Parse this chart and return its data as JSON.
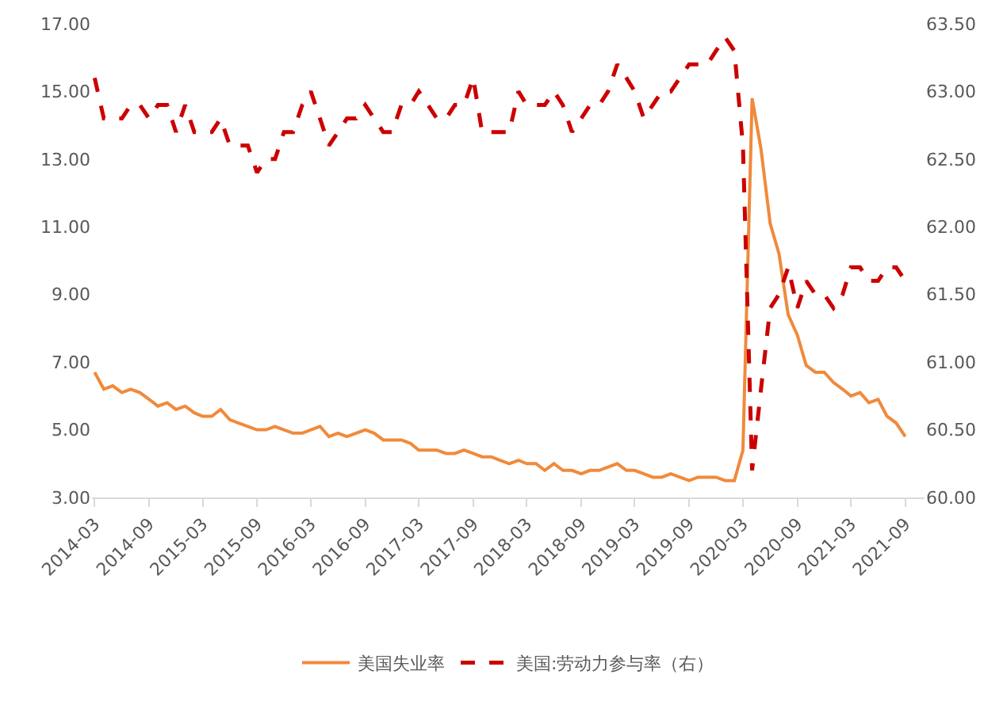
{
  "chart_data": {
    "type": "line",
    "legend": "bottom",
    "grid": false,
    "x": [
      "2014-03",
      "2014-04",
      "2014-05",
      "2014-06",
      "2014-07",
      "2014-08",
      "2014-09",
      "2014-10",
      "2014-11",
      "2014-12",
      "2015-01",
      "2015-02",
      "2015-03",
      "2015-04",
      "2015-05",
      "2015-06",
      "2015-07",
      "2015-08",
      "2015-09",
      "2015-10",
      "2015-11",
      "2015-12",
      "2016-01",
      "2016-02",
      "2016-03",
      "2016-04",
      "2016-05",
      "2016-06",
      "2016-07",
      "2016-08",
      "2016-09",
      "2016-10",
      "2016-11",
      "2016-12",
      "2017-01",
      "2017-02",
      "2017-03",
      "2017-04",
      "2017-05",
      "2017-06",
      "2017-07",
      "2017-08",
      "2017-09",
      "2017-10",
      "2017-11",
      "2017-12",
      "2018-01",
      "2018-02",
      "2018-03",
      "2018-04",
      "2018-05",
      "2018-06",
      "2018-07",
      "2018-08",
      "2018-09",
      "2018-10",
      "2018-11",
      "2018-12",
      "2019-01",
      "2019-02",
      "2019-03",
      "2019-04",
      "2019-05",
      "2019-06",
      "2019-07",
      "2019-08",
      "2019-09",
      "2019-10",
      "2019-11",
      "2019-12",
      "2020-01",
      "2020-02",
      "2020-03",
      "2020-04",
      "2020-05",
      "2020-06",
      "2020-07",
      "2020-08",
      "2020-09",
      "2020-10",
      "2020-11",
      "2020-12",
      "2021-01",
      "2021-02",
      "2021-03",
      "2021-04",
      "2021-05",
      "2021-06",
      "2021-07",
      "2021-08",
      "2021-09"
    ],
    "xlim": [
      "2014-02-20",
      "2021-11-05"
    ],
    "xticks": [
      "2014-03",
      "2014-09",
      "2015-03",
      "2015-09",
      "2016-03",
      "2016-09",
      "2017-03",
      "2017-09",
      "2018-03",
      "2018-09",
      "2019-03",
      "2019-09",
      "2020-03",
      "2020-09",
      "2021-03",
      "2021-09"
    ],
    "ylim": [
      3,
      17
    ],
    "yticks": [
      {
        "value": 3,
        "label": "3.00"
      },
      {
        "value": 5,
        "label": "5.00"
      },
      {
        "value": 7,
        "label": "7.00"
      },
      {
        "value": 9,
        "label": "9.00"
      },
      {
        "value": 11,
        "label": "11.00"
      },
      {
        "value": 13,
        "label": "13.00"
      },
      {
        "value": 15,
        "label": "15.00"
      },
      {
        "value": 17,
        "label": "17.00"
      }
    ],
    "y2lim": [
      60,
      63.5
    ],
    "y2ticks": [
      {
        "value": 60,
        "label": "60.00"
      },
      {
        "value": 60.5,
        "label": "60.50"
      },
      {
        "value": 61,
        "label": "61.00"
      },
      {
        "value": 61.5,
        "label": "61.50"
      },
      {
        "value": 62,
        "label": "62.00"
      },
      {
        "value": 62.5,
        "label": "62.50"
      },
      {
        "value": 63,
        "label": "63.00"
      },
      {
        "value": 63.5,
        "label": "63.50"
      }
    ],
    "series": [
      {
        "name": "美国失业率",
        "color": "#f08a3c",
        "line_style": "solid",
        "values": [
          6.7,
          6.2,
          6.3,
          6.1,
          6.2,
          6.1,
          5.9,
          5.7,
          5.8,
          5.6,
          5.7,
          5.5,
          5.4,
          5.4,
          5.6,
          5.3,
          5.2,
          5.1,
          5.0,
          5.0,
          5.1,
          5.0,
          4.9,
          4.9,
          5.0,
          5.1,
          4.8,
          4.9,
          4.8,
          4.9,
          5.0,
          4.9,
          4.7,
          4.7,
          4.7,
          4.6,
          4.4,
          4.4,
          4.4,
          4.3,
          4.3,
          4.4,
          4.3,
          4.2,
          4.2,
          4.1,
          4.0,
          4.1,
          4.0,
          4.0,
          3.8,
          4.0,
          3.8,
          3.8,
          3.7,
          3.8,
          3.8,
          3.9,
          4.0,
          3.8,
          3.8,
          3.7,
          3.6,
          3.6,
          3.7,
          3.6,
          3.5,
          3.6,
          3.6,
          3.6,
          3.5,
          3.5,
          4.4,
          14.8,
          13.3,
          11.1,
          10.2,
          8.4,
          7.8,
          6.9,
          6.7,
          6.7,
          6.4,
          6.2,
          6.0,
          6.1,
          5.8,
          5.9,
          5.4,
          5.2,
          4.8
        ]
      },
      {
        "name": "美国:劳动力参与率（右）",
        "color": "#cc0000",
        "line_style": "dashed",
        "axis": "y2",
        "values": [
          63.1,
          62.8,
          62.8,
          62.8,
          62.9,
          62.9,
          62.8,
          62.9,
          62.9,
          62.7,
          62.9,
          62.7,
          62.7,
          62.7,
          62.8,
          62.6,
          62.6,
          62.6,
          62.4,
          62.5,
          62.5,
          62.7,
          62.7,
          62.9,
          63.0,
          62.8,
          62.6,
          62.7,
          62.8,
          62.8,
          62.9,
          62.8,
          62.7,
          62.7,
          62.9,
          62.9,
          63.0,
          62.9,
          62.8,
          62.8,
          62.9,
          62.9,
          63.1,
          62.7,
          62.7,
          62.7,
          62.7,
          63.0,
          62.9,
          62.9,
          62.9,
          63.0,
          62.9,
          62.7,
          62.8,
          62.9,
          62.9,
          63.0,
          63.2,
          63.1,
          63.0,
          62.8,
          62.9,
          63.0,
          63.0,
          63.1,
          63.2,
          63.2,
          63.2,
          63.3,
          63.4,
          63.3,
          62.6,
          60.2,
          60.8,
          61.4,
          61.5,
          61.7,
          61.4,
          61.6,
          61.5,
          61.5,
          61.4,
          61.5,
          61.7,
          61.7,
          61.6,
          61.6,
          61.7,
          61.7,
          61.6
        ]
      }
    ]
  }
}
